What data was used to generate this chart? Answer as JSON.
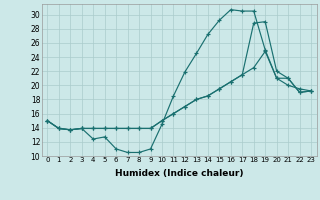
{
  "xlabel": "Humidex (Indice chaleur)",
  "background_color": "#cce8e8",
  "grid_color": "#aacccc",
  "line_color": "#1a7070",
  "xlim": [
    -0.5,
    23.5
  ],
  "ylim": [
    10,
    31.5
  ],
  "yticks": [
    10,
    12,
    14,
    16,
    18,
    20,
    22,
    24,
    26,
    28,
    30
  ],
  "xticks": [
    0,
    1,
    2,
    3,
    4,
    5,
    6,
    7,
    8,
    9,
    10,
    11,
    12,
    13,
    14,
    15,
    16,
    17,
    18,
    19,
    20,
    21,
    22,
    23
  ],
  "xtick_labels": [
    "0",
    "1",
    "2",
    "3",
    "4",
    "5",
    "6",
    "7",
    "8",
    "9",
    "10",
    "11",
    "12",
    "13",
    "14",
    "15",
    "16",
    "17",
    "18",
    "19",
    "20",
    "21",
    "22",
    "23"
  ],
  "line1_x": [
    0,
    1,
    2,
    3,
    4,
    5,
    6,
    7,
    8,
    9,
    10,
    11,
    12,
    13,
    14,
    15,
    16,
    17,
    18,
    19,
    20,
    21,
    22,
    23
  ],
  "line1_y": [
    15.0,
    13.9,
    13.7,
    13.9,
    12.4,
    12.7,
    11.0,
    10.5,
    10.5,
    11.0,
    14.5,
    18.5,
    21.9,
    24.5,
    27.2,
    29.2,
    30.7,
    30.5,
    30.5,
    25.0,
    21.0,
    20.0,
    19.5,
    19.2
  ],
  "line2_x": [
    0,
    1,
    2,
    3,
    4,
    5,
    6,
    7,
    8,
    9,
    10,
    11,
    12,
    13,
    14,
    15,
    16,
    17,
    18,
    19,
    20,
    21,
    22,
    23
  ],
  "line2_y": [
    15.0,
    13.9,
    13.7,
    13.9,
    13.9,
    13.9,
    13.9,
    13.9,
    13.9,
    13.9,
    15.0,
    16.0,
    17.0,
    18.0,
    18.5,
    19.5,
    20.5,
    21.5,
    22.5,
    24.8,
    21.0,
    21.0,
    19.0,
    19.2
  ],
  "line3_x": [
    0,
    1,
    2,
    3,
    4,
    5,
    6,
    7,
    8,
    9,
    10,
    11,
    12,
    13,
    14,
    15,
    16,
    17,
    18,
    19,
    20,
    21,
    22,
    23
  ],
  "line3_y": [
    15.0,
    13.9,
    13.7,
    13.9,
    13.9,
    13.9,
    13.9,
    13.9,
    13.9,
    13.9,
    15.0,
    16.0,
    17.0,
    18.0,
    18.5,
    19.5,
    20.5,
    21.5,
    28.8,
    29.0,
    22.0,
    21.0,
    19.0,
    19.2
  ]
}
